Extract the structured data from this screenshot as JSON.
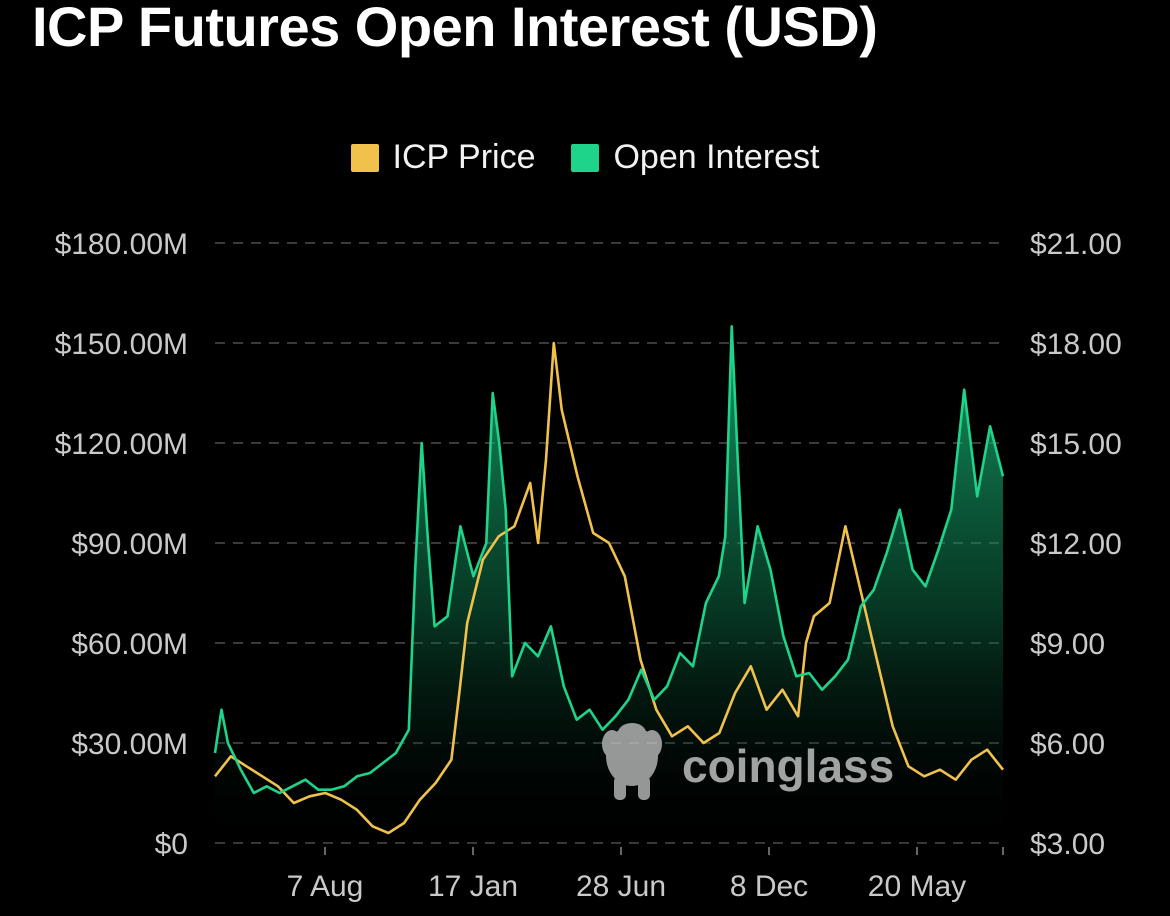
{
  "chart_data": {
    "type": "line",
    "title": "ICP Futures Open Interest (USD)",
    "x_tick_labels": [
      "7 Aug",
      "17 Jan",
      "28 Jun",
      "8 Dec",
      "20 May"
    ],
    "y_left": {
      "ticks": [
        "$0",
        "$30.00M",
        "$60.00M",
        "$90.00M",
        "$120.00M",
        "$150.00M",
        "$180.00M"
      ],
      "range": [
        0,
        180
      ]
    },
    "y_right": {
      "ticks": [
        "$3.00",
        "$6.00",
        "$9.00",
        "$12.00",
        "$15.00",
        "$18.00",
        "$21.00"
      ],
      "range": [
        3,
        21
      ]
    },
    "grid": "horizontal-dashed",
    "legend_position": "top-center",
    "series": [
      {
        "name": "ICP Price",
        "axis": "right",
        "color": "#f0c14b",
        "points": [
          [
            0,
            5.0
          ],
          [
            2,
            5.6
          ],
          [
            4,
            5.3
          ],
          [
            6,
            5.0
          ],
          [
            8,
            4.7
          ],
          [
            10,
            4.2
          ],
          [
            12,
            4.4
          ],
          [
            14,
            4.5
          ],
          [
            16,
            4.3
          ],
          [
            18,
            4.0
          ],
          [
            20,
            3.5
          ],
          [
            22,
            3.3
          ],
          [
            24,
            3.6
          ],
          [
            26,
            4.3
          ],
          [
            28,
            4.8
          ],
          [
            30,
            5.5
          ],
          [
            31,
            7.5
          ],
          [
            32,
            9.6
          ],
          [
            34,
            11.5
          ],
          [
            36,
            12.2
          ],
          [
            38,
            12.5
          ],
          [
            40,
            13.8
          ],
          [
            41,
            12.0
          ],
          [
            42,
            14.5
          ],
          [
            43,
            18.0
          ],
          [
            44,
            16.0
          ],
          [
            46,
            14.0
          ],
          [
            48,
            12.3
          ],
          [
            50,
            12.0
          ],
          [
            52,
            11.0
          ],
          [
            54,
            8.5
          ],
          [
            56,
            7.0
          ],
          [
            58,
            6.2
          ],
          [
            60,
            6.5
          ],
          [
            62,
            6.0
          ],
          [
            64,
            6.3
          ],
          [
            66,
            7.5
          ],
          [
            68,
            8.3
          ],
          [
            70,
            7.0
          ],
          [
            72,
            7.6
          ],
          [
            74,
            6.8
          ],
          [
            75,
            9.0
          ],
          [
            76,
            9.8
          ],
          [
            78,
            10.2
          ],
          [
            80,
            12.5
          ],
          [
            82,
            10.5
          ],
          [
            84,
            8.5
          ],
          [
            86,
            6.5
          ],
          [
            88,
            5.3
          ],
          [
            90,
            5.0
          ],
          [
            92,
            5.2
          ],
          [
            94,
            4.9
          ],
          [
            96,
            5.5
          ],
          [
            98,
            5.8
          ],
          [
            100,
            5.2
          ]
        ]
      },
      {
        "name": "Open Interest",
        "axis": "left",
        "color": "#1ed38a",
        "points": [
          [
            0,
            27
          ],
          [
            1,
            40
          ],
          [
            2,
            30
          ],
          [
            4,
            22
          ],
          [
            6,
            15
          ],
          [
            8,
            17
          ],
          [
            10,
            15
          ],
          [
            12,
            17
          ],
          [
            14,
            19
          ],
          [
            16,
            16
          ],
          [
            18,
            16
          ],
          [
            20,
            17
          ],
          [
            22,
            20
          ],
          [
            24,
            21
          ],
          [
            26,
            24
          ],
          [
            28,
            27
          ],
          [
            30,
            34
          ],
          [
            31,
            82
          ],
          [
            32,
            120
          ],
          [
            33,
            90
          ],
          [
            34,
            65
          ],
          [
            36,
            68
          ],
          [
            38,
            95
          ],
          [
            40,
            80
          ],
          [
            42,
            90
          ],
          [
            43,
            135
          ],
          [
            44,
            120
          ],
          [
            45,
            100
          ],
          [
            46,
            50
          ],
          [
            48,
            60
          ],
          [
            50,
            56
          ],
          [
            52,
            65
          ],
          [
            54,
            47
          ],
          [
            56,
            37
          ],
          [
            58,
            40
          ],
          [
            60,
            34
          ],
          [
            62,
            38
          ],
          [
            64,
            43
          ],
          [
            66,
            52
          ],
          [
            68,
            43
          ],
          [
            70,
            47
          ],
          [
            72,
            57
          ],
          [
            74,
            53
          ],
          [
            76,
            72
          ],
          [
            78,
            80
          ],
          [
            79,
            92
          ],
          [
            80,
            155
          ],
          [
            81,
            112
          ],
          [
            82,
            72
          ],
          [
            84,
            95
          ],
          [
            86,
            82
          ],
          [
            88,
            62
          ],
          [
            90,
            50
          ],
          [
            92,
            51
          ],
          [
            94,
            46
          ],
          [
            96,
            50
          ],
          [
            98,
            55
          ],
          [
            100,
            71
          ],
          [
            102,
            76
          ],
          [
            104,
            87
          ],
          [
            106,
            100
          ],
          [
            108,
            82
          ],
          [
            110,
            77
          ],
          [
            112,
            88
          ],
          [
            114,
            100
          ],
          [
            116,
            136
          ],
          [
            118,
            104
          ],
          [
            120,
            125
          ],
          [
            122,
            110
          ]
        ]
      }
    ],
    "watermark": "coinglass"
  }
}
